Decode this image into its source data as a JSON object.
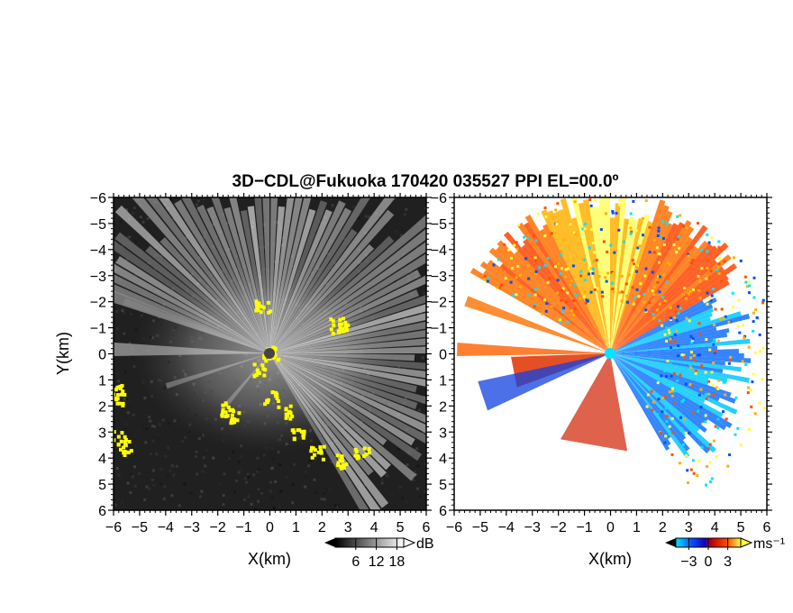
{
  "title": "3D−CDL@Fukuoka 170420 035527 PPI EL=00.0º",
  "chart_data": [
    {
      "type": "heatmap",
      "name": "snr",
      "xlabel": "X(km)",
      "ylabel": "Y(km)",
      "xlim": [
        -6,
        6
      ],
      "ylim": [
        -6,
        6
      ],
      "xticks": [
        "−6",
        "−5",
        "−4",
        "−3",
        "−2",
        "−1",
        "0",
        "1",
        "2",
        "3",
        "4",
        "5",
        "6"
      ],
      "yticks": [
        "−6",
        "−5",
        "−4",
        "−3",
        "−2",
        "−1",
        "0",
        "1",
        "2",
        "3",
        "4",
        "5",
        "6"
      ],
      "colorbar": {
        "unit": "dB",
        "ticks": [
          "6",
          "12",
          "18"
        ],
        "tick_values": [
          6,
          12,
          18
        ],
        "range": [
          0,
          20
        ],
        "colors": [
          "#000000",
          "#ffffff"
        ]
      }
    },
    {
      "type": "heatmap",
      "name": "doppler-velocity",
      "xlabel": "X(km)",
      "xlim": [
        -6,
        6
      ],
      "ylim": [
        -6,
        6
      ],
      "xticks": [
        "−6",
        "−5",
        "−4",
        "−3",
        "−2",
        "−1",
        "0",
        "1",
        "2",
        "3",
        "4",
        "5",
        "6"
      ],
      "yticks": [
        "−6",
        "−5",
        "−4",
        "−3",
        "−2",
        "−1",
        "0",
        "1",
        "2",
        "3",
        "4",
        "5",
        "6"
      ],
      "colorbar": {
        "unit": "ms⁻¹",
        "ticks": [
          "−3",
          "0",
          "3"
        ],
        "tick_values": [
          -3,
          0,
          3
        ],
        "range": [
          -5,
          5
        ],
        "colors": [
          "#00e5ff",
          "#0050ff",
          "#1a00c0",
          "#c00000",
          "#ff5000",
          "#ffff40"
        ]
      }
    }
  ]
}
